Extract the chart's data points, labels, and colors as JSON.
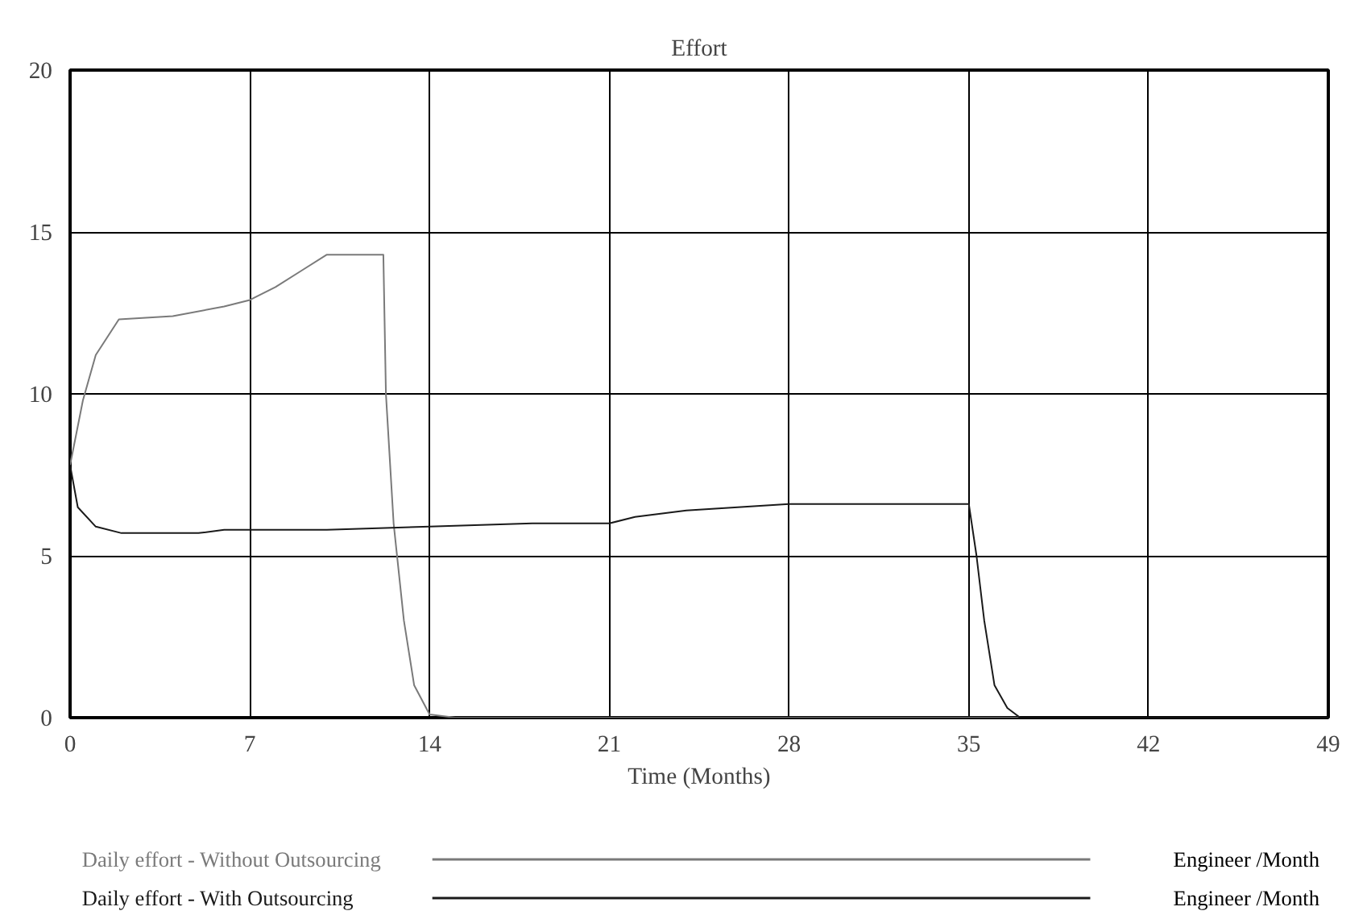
{
  "chart_data": {
    "type": "line",
    "title": "Effort",
    "xlabel": "Time (Months)",
    "xlim": [
      0,
      49
    ],
    "ylim": [
      0,
      20
    ],
    "xticks": [
      0,
      7,
      14,
      21,
      28,
      35,
      42,
      49
    ],
    "yticks": [
      0,
      5,
      10,
      15,
      20
    ],
    "grid": true,
    "legend": "bottom",
    "line_style": "solid",
    "annotations": [
      "Engineer /Month",
      "Engineer /Month"
    ],
    "series": [
      {
        "name": "Daily effort - Without Outsourcing",
        "color": "#7a7a7a",
        "x": [
          0,
          0.5,
          1,
          1.9,
          4,
          6,
          7,
          8,
          9,
          10,
          12.2,
          12.3,
          12.6,
          13,
          13.4,
          14,
          15,
          49
        ],
        "values": [
          7.8,
          9.8,
          11.2,
          12.3,
          12.4,
          12.7,
          12.9,
          13.3,
          13.8,
          14.3,
          14.3,
          10,
          6,
          3,
          1,
          0.1,
          0,
          0
        ]
      },
      {
        "name": "Daily effort - With Outsourcing",
        "color": "#1a1a1a",
        "x": [
          0,
          0.3,
          1,
          2,
          5,
          6,
          10,
          14,
          18,
          21,
          22,
          24,
          26,
          28,
          35,
          35.3,
          35.6,
          36,
          36.5,
          37,
          49
        ],
        "values": [
          7.8,
          6.5,
          5.9,
          5.7,
          5.7,
          5.8,
          5.8,
          5.9,
          6.0,
          6.0,
          6.2,
          6.4,
          6.5,
          6.6,
          6.6,
          5,
          3,
          1,
          0.3,
          0,
          0
        ]
      }
    ]
  }
}
